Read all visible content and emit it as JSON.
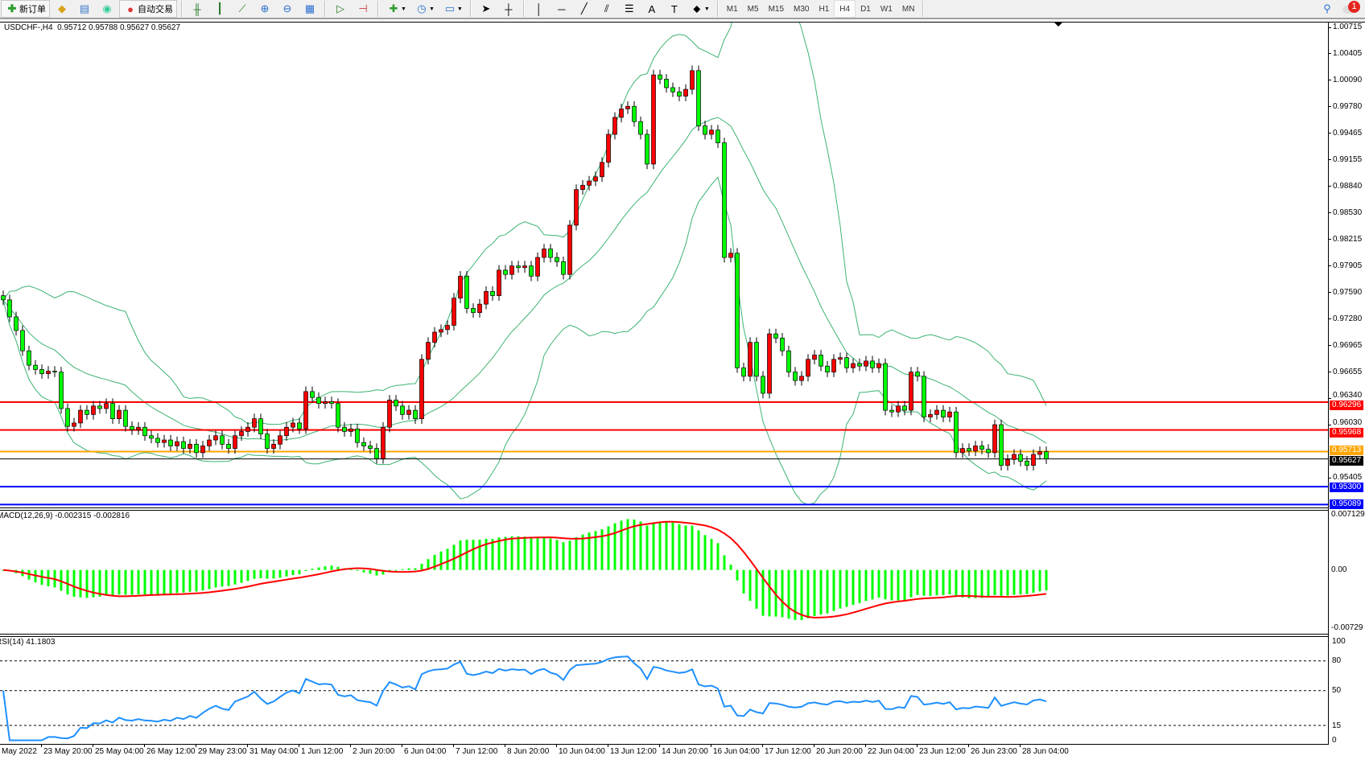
{
  "toolbar": {
    "new_order": "新订单",
    "auto_trading": "自动交易",
    "timeframes": [
      "M1",
      "M5",
      "M15",
      "M30",
      "H1",
      "H4",
      "D1",
      "W1",
      "MN"
    ],
    "active_timeframe": "H4",
    "notification_count": "1",
    "icons": [
      "profiles-icon",
      "market-watch-icon",
      "navigator-icon",
      "signals-icon",
      "bar-chart-icon",
      "candlestick-icon",
      "line-chart-icon",
      "zoom-in-icon",
      "zoom-out-icon",
      "tile-windows-icon",
      "autoscroll-icon",
      "chart-shift-icon",
      "indicators-icon",
      "periods-icon",
      "templates-icon",
      "cursor-icon",
      "crosshair-icon",
      "vertical-line-icon",
      "horizontal-line-icon",
      "trendline-icon",
      "equidistant-channel-icon",
      "fibonacci-icon",
      "text-icon",
      "text-label-icon",
      "arrows-icon",
      "search-icon",
      "chat-icon"
    ]
  },
  "chart": {
    "symbol": "USDCHF-,H4",
    "ohlc": "0.95712 0.95788 0.95627 0.95627",
    "macd_title": "MACD(12,26,9) -0.002315 -0.002816",
    "rsi_title": "RSI(14) 41.1803",
    "price_ticks": [
      "1.00715",
      "1.00405",
      "1.00090",
      "0.99780",
      "0.99465",
      "0.99155",
      "0.98840",
      "0.98530",
      "0.98215",
      "0.97905",
      "0.97590",
      "0.97280",
      "0.96965",
      "0.96655",
      "0.96340",
      "0.96030",
      "0.95405"
    ],
    "macd_ticks": [
      "0.007129",
      "0.00",
      "-0.00729"
    ],
    "rsi_ticks": [
      "100",
      "80",
      "50",
      "15",
      "0"
    ],
    "rsi_levels": [
      80,
      50,
      15
    ],
    "time_labels": [
      "May 2022",
      "23 May 20:00",
      "25 May 04:00",
      "26 May 12:00",
      "29 May 23:00",
      "31 May 04:00",
      "1 Jun 12:00",
      "2 Jun 20:00",
      "6 Jun 04:00",
      "7 Jun 12:00",
      "8 Jun 20:00",
      "10 Jun 04:00",
      "13 Jun 12:00",
      "14 Jun 20:00",
      "16 Jun 04:00",
      "17 Jun 12:00",
      "20 Jun 20:00",
      "22 Jun 04:00",
      "23 Jun 12:00",
      "26 Jun 23:00",
      "28 Jun 04:00"
    ],
    "levels": [
      {
        "price": "0.96296",
        "color": "#ff0000",
        "kind": "resistance"
      },
      {
        "price": "0.95968",
        "color": "#ff0000",
        "kind": "resistance"
      },
      {
        "price": "0.95713",
        "color": "#ffa500",
        "kind": "ask"
      },
      {
        "price": "0.95627",
        "color": "#000000",
        "kind": "bid"
      },
      {
        "price": "0.95300",
        "color": "#0000ff",
        "kind": "support"
      },
      {
        "price": "0.95089",
        "color": "#0000ff",
        "kind": "support"
      }
    ]
  },
  "chart_data": {
    "type": "candlestick",
    "symbol": "USDCHF-",
    "timeframe": "H4",
    "bull_color": "#ff0000",
    "bear_color": "#00ff00",
    "band_color": "#3cb371",
    "macd_hist_color": "#00ff00",
    "macd_signal_color": "#ff0000",
    "rsi_color": "#1e90ff",
    "y_range": [
      0.95089,
      1.00715
    ],
    "first_open": 0.9755,
    "closes": [
      0.975,
      0.973,
      0.9714,
      0.969,
      0.9673,
      0.9668,
      0.9663,
      0.9666,
      0.9665,
      0.9622,
      0.9601,
      0.9605,
      0.962,
      0.9615,
      0.9625,
      0.9622,
      0.9628,
      0.961,
      0.962,
      0.9601,
      0.9597,
      0.96,
      0.959,
      0.9587,
      0.9582,
      0.9585,
      0.9578,
      0.9583,
      0.9575,
      0.958,
      0.957,
      0.9578,
      0.9585,
      0.959,
      0.958,
      0.9575,
      0.959,
      0.9595,
      0.96,
      0.961,
      0.9592,
      0.9575,
      0.958,
      0.959,
      0.96,
      0.9605,
      0.9598,
      0.9642,
      0.9635,
      0.9628,
      0.963,
      0.9628,
      0.96,
      0.9595,
      0.9598,
      0.9582,
      0.9578,
      0.9575,
      0.9563,
      0.96,
      0.9632,
      0.9625,
      0.9615,
      0.962,
      0.961,
      0.968,
      0.97,
      0.9712,
      0.9715,
      0.972,
      0.9752,
      0.9778,
      0.974,
      0.9735,
      0.9745,
      0.976,
      0.9755,
      0.9785,
      0.978,
      0.979,
      0.9788,
      0.979,
      0.9778,
      0.98,
      0.981,
      0.98,
      0.9795,
      0.978,
      0.9838,
      0.988,
      0.9885,
      0.989,
      0.9895,
      0.9912,
      0.9945,
      0.9965,
      0.9975,
      0.9978,
      0.996,
      0.9945,
      0.991,
      1.0015,
      1.001,
      1.0,
      0.9995,
      0.999,
      0.9998,
      1.002,
      0.9955,
      0.9945,
      0.995,
      0.9935,
      0.98,
      0.9805,
      0.967,
      0.966,
      0.97,
      0.966,
      0.964,
      0.971,
      0.9705,
      0.969,
      0.9665,
      0.9655,
      0.966,
      0.968,
      0.9685,
      0.9672,
      0.9665,
      0.968,
      0.9682,
      0.967,
      0.9675,
      0.9672,
      0.9678,
      0.967,
      0.9675,
      0.962,
      0.9618,
      0.9625,
      0.962,
      0.9665,
      0.966,
      0.9612,
      0.9615,
      0.962,
      0.9612,
      0.9618,
      0.957,
      0.9575,
      0.9572,
      0.9578,
      0.9574,
      0.957,
      0.9603,
      0.9555,
      0.9562,
      0.9568,
      0.956,
      0.9555,
      0.9568,
      0.95712,
      0.95627
    ]
  }
}
